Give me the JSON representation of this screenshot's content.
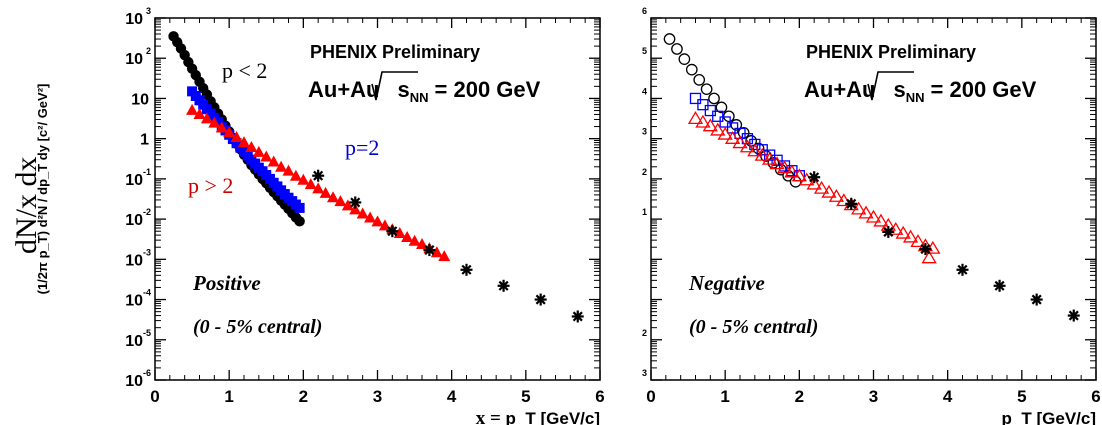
{
  "side_label": "dN/x dx",
  "chart_data": [
    {
      "type": "scatter",
      "title": "PHENIX Preliminary",
      "system_prefix": "Au+Au",
      "system_sqrt": "s",
      "system_sub": "NN",
      "system_energy": "= 200 GeV",
      "ylabel": "(1/2π p_T) d²N / dp_T dy [c²/ GeV²]",
      "xlabel_prefix": "x = ",
      "xlabel": "p_T [GeV/c]",
      "xlim": [
        0,
        6
      ],
      "ylim": [
        1e-06,
        1000
      ],
      "y_scale": "log",
      "x_ticks": [
        "0",
        "1",
        "2",
        "3",
        "4",
        "5",
        "6"
      ],
      "y_ticks": [
        {
          "base": "10",
          "exp": "-6"
        },
        {
          "base": "10",
          "exp": "-5"
        },
        {
          "base": "10",
          "exp": "-4"
        },
        {
          "base": "10",
          "exp": "-3"
        },
        {
          "base": "10",
          "exp": "-2"
        },
        {
          "base": "10",
          "exp": "-1"
        },
        {
          "base": "1",
          "exp": ""
        },
        {
          "base": "10",
          "exp": ""
        },
        {
          "base": "10",
          "exp": "2"
        },
        {
          "base": "10",
          "exp": "3"
        }
      ],
      "charge_label": "Positive",
      "centrality_label": "(0 - 5% central)",
      "annotations": [
        {
          "text": "p < 2",
          "color": "#000000"
        },
        {
          "text": "p=2",
          "color": "#0000cc"
        },
        {
          "text": "p > 2",
          "color": "#cc0000"
        }
      ],
      "series": [
        {
          "marker": "filled-circle",
          "color": "#000000",
          "x": [
            0.25,
            0.3,
            0.35,
            0.4,
            0.45,
            0.5,
            0.55,
            0.6,
            0.65,
            0.7,
            0.75,
            0.8,
            0.85,
            0.9,
            0.95,
            1.0,
            1.05,
            1.1,
            1.15,
            1.2,
            1.25,
            1.3,
            1.35,
            1.4,
            1.45,
            1.5,
            1.55,
            1.6,
            1.65,
            1.7,
            1.75,
            1.8,
            1.85,
            1.9,
            1.95
          ],
          "y": [
            350,
            250,
            175,
            120,
            80,
            55,
            38,
            26,
            18,
            12.5,
            8.5,
            6,
            4.2,
            3,
            2.1,
            1.5,
            1.05,
            0.75,
            0.55,
            0.4,
            0.3,
            0.22,
            0.17,
            0.13,
            0.1,
            0.078,
            0.06,
            0.047,
            0.037,
            0.029,
            0.023,
            0.018,
            0.014,
            0.011,
            0.0088
          ]
        },
        {
          "marker": "filled-square",
          "color": "#0000ff",
          "x": [
            0.5,
            0.55,
            0.6,
            0.65,
            0.7,
            0.75,
            0.8,
            0.85,
            0.9,
            0.95,
            1.0,
            1.05,
            1.1,
            1.15,
            1.2,
            1.25,
            1.3,
            1.35,
            1.4,
            1.45,
            1.5,
            1.55,
            1.6,
            1.65,
            1.7,
            1.75,
            1.8,
            1.85,
            1.9,
            1.95
          ],
          "y": [
            15,
            11.5,
            9,
            7,
            5.4,
            4.2,
            3.3,
            2.6,
            2,
            1.6,
            1.25,
            0.98,
            0.77,
            0.6,
            0.48,
            0.38,
            0.3,
            0.24,
            0.19,
            0.155,
            0.125,
            0.1,
            0.08,
            0.065,
            0.052,
            0.042,
            0.034,
            0.028,
            0.023,
            0.019
          ]
        },
        {
          "marker": "filled-triangle",
          "color": "#ff0000",
          "x": [
            0.5,
            0.6,
            0.7,
            0.8,
            0.9,
            1.0,
            1.1,
            1.2,
            1.3,
            1.4,
            1.5,
            1.6,
            1.7,
            1.8,
            1.9,
            2.0,
            2.1,
            2.2,
            2.3,
            2.4,
            2.5,
            2.6,
            2.7,
            2.8,
            2.9,
            3.0,
            3.1,
            3.2,
            3.3,
            3.4,
            3.5,
            3.6,
            3.7,
            3.8,
            3.9
          ],
          "y": [
            5.2,
            4.1,
            3.2,
            2.5,
            1.9,
            1.45,
            1.1,
            0.82,
            0.62,
            0.47,
            0.36,
            0.27,
            0.2,
            0.16,
            0.12,
            0.095,
            0.074,
            0.058,
            0.045,
            0.035,
            0.028,
            0.022,
            0.0175,
            0.0138,
            0.011,
            0.0088,
            0.007,
            0.0056,
            0.0045,
            0.0036,
            0.0029,
            0.0024,
            0.0019,
            0.0015,
            0.0012
          ]
        },
        {
          "marker": "star",
          "color": "#000000",
          "x": [
            2.2,
            2.7,
            3.2,
            3.7,
            4.2,
            4.7,
            5.2,
            5.7
          ],
          "y": [
            0.12,
            0.026,
            0.005,
            0.0017,
            0.00055,
            0.00022,
            0.0001,
            3.8e-05
          ]
        }
      ]
    },
    {
      "type": "scatter",
      "title": "PHENIX Preliminary",
      "system_prefix": "Au+Au",
      "system_sqrt": "s",
      "system_sub": "NN",
      "system_energy": "= 200 GeV",
      "xlabel": "p_T [GeV/c]",
      "xlim": [
        0,
        6
      ],
      "ylim": [
        1e-06,
        1000
      ],
      "y_scale": "log",
      "x_ticks": [
        "0",
        "1",
        "2",
        "3",
        "4",
        "5",
        "6"
      ],
      "y_tick_marks": [
        "3",
        "2",
        "",
        "",
        "1",
        "2",
        "3",
        "4",
        "5",
        "6"
      ],
      "charge_label": "Negative",
      "centrality_label": "(0 - 5% central)",
      "series": [
        {
          "marker": "open-circle",
          "color": "#000000",
          "x": [
            0.25,
            0.35,
            0.45,
            0.55,
            0.65,
            0.75,
            0.85,
            0.95,
            1.05,
            1.15,
            1.25,
            1.35,
            1.45,
            1.55,
            1.65,
            1.75,
            1.85,
            1.95
          ],
          "y": [
            300,
            170,
            95,
            52,
            29,
            17,
            10,
            6,
            3.6,
            2.2,
            1.4,
            0.88,
            0.57,
            0.37,
            0.25,
            0.17,
            0.12,
            0.085
          ]
        },
        {
          "marker": "open-square",
          "color": "#0000ff",
          "x": [
            0.6,
            0.7,
            0.8,
            0.9,
            1.0,
            1.1,
            1.2,
            1.3,
            1.4,
            1.5,
            1.6,
            1.7,
            1.8,
            1.9,
            2.0
          ],
          "y": [
            10,
            7,
            5,
            3.6,
            2.6,
            1.85,
            1.35,
            1,
            0.72,
            0.53,
            0.39,
            0.29,
            0.21,
            0.16,
            0.12
          ]
        },
        {
          "marker": "open-triangle",
          "color": "#ff0000",
          "x": [
            0.6,
            0.7,
            0.8,
            0.9,
            1.0,
            1.1,
            1.2,
            1.3,
            1.4,
            1.5,
            1.6,
            1.7,
            1.8,
            1.9,
            2.0,
            2.1,
            2.2,
            2.3,
            2.4,
            2.5,
            2.6,
            2.7,
            2.8,
            2.9,
            3.0,
            3.1,
            3.2,
            3.3,
            3.4,
            3.5,
            3.6,
            3.7,
            3.75,
            3.8
          ],
          "y": [
            3.2,
            2.6,
            2.1,
            1.65,
            1.3,
            1.02,
            0.8,
            0.63,
            0.5,
            0.39,
            0.31,
            0.24,
            0.19,
            0.15,
            0.12,
            0.095,
            0.075,
            0.059,
            0.047,
            0.037,
            0.029,
            0.023,
            0.018,
            0.0143,
            0.0113,
            0.009,
            0.0071,
            0.0056,
            0.0045,
            0.0036,
            0.0028,
            0.0022,
            0.0011,
            0.0019
          ]
        },
        {
          "marker": "star",
          "color": "#000000",
          "x": [
            2.2,
            2.7,
            3.2,
            3.7,
            4.2,
            4.7,
            5.2,
            5.7
          ],
          "y": [
            0.11,
            0.024,
            0.0048,
            0.0018,
            0.00055,
            0.00022,
            0.0001,
            4e-05
          ]
        }
      ]
    }
  ]
}
